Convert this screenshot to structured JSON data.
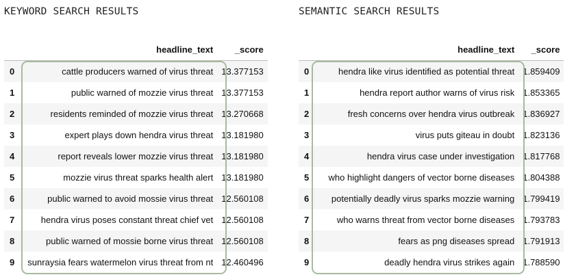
{
  "keyword": {
    "title": "KEYWORD SEARCH RESULTS",
    "columns": [
      "",
      "headline_text",
      "_score"
    ],
    "rows": [
      {
        "index": "0",
        "headline": "cattle producers warned of virus threat",
        "score": "13.377153"
      },
      {
        "index": "1",
        "headline": "public warned of mozzie virus threat",
        "score": "13.377153"
      },
      {
        "index": "2",
        "headline": "residents reminded of mozzie virus threat",
        "score": "13.270668"
      },
      {
        "index": "3",
        "headline": "expert plays down hendra virus threat",
        "score": "13.181980"
      },
      {
        "index": "4",
        "headline": "report reveals lower mozzie virus threat",
        "score": "13.181980"
      },
      {
        "index": "5",
        "headline": "mozzie virus threat sparks health alert",
        "score": "13.181980"
      },
      {
        "index": "6",
        "headline": "public warned to avoid mossie virus threat",
        "score": "12.560108"
      },
      {
        "index": "7",
        "headline": "hendra virus poses constant threat chief vet",
        "score": "12.560108"
      },
      {
        "index": "8",
        "headline": "public warned of mossie borne virus threat",
        "score": "12.560108"
      },
      {
        "index": "9",
        "headline": "sunraysia fears watermelon virus threat from nt",
        "score": "12.460496"
      }
    ]
  },
  "semantic": {
    "title": "SEMANTIC SEARCH RESULTS",
    "columns": [
      "",
      "headline_text",
      "_score"
    ],
    "rows": [
      {
        "index": "0",
        "headline": "hendra like virus identified as potential threat",
        "score": "1.859409"
      },
      {
        "index": "1",
        "headline": "hendra report author warns of virus risk",
        "score": "1.853365"
      },
      {
        "index": "2",
        "headline": "fresh concerns over hendra virus outbreak",
        "score": "1.836927"
      },
      {
        "index": "3",
        "headline": "virus puts giteau in doubt",
        "score": "1.823136"
      },
      {
        "index": "4",
        "headline": "hendra virus case under investigation",
        "score": "1.817768"
      },
      {
        "index": "5",
        "headline": "who highlight dangers of vector borne diseases",
        "score": "1.804388"
      },
      {
        "index": "6",
        "headline": "potentially deadly virus sparks mozzie warning",
        "score": "1.799419"
      },
      {
        "index": "7",
        "headline": "who warns threat from vector borne diseases",
        "score": "1.793783"
      },
      {
        "index": "8",
        "headline": "fears as png diseases spread",
        "score": "1.791913"
      },
      {
        "index": "9",
        "headline": "deadly hendra virus strikes again",
        "score": "1.788590"
      }
    ]
  },
  "colors": {
    "highlight_border": "#a8b99f",
    "stripe": "#f5f5f5"
  }
}
